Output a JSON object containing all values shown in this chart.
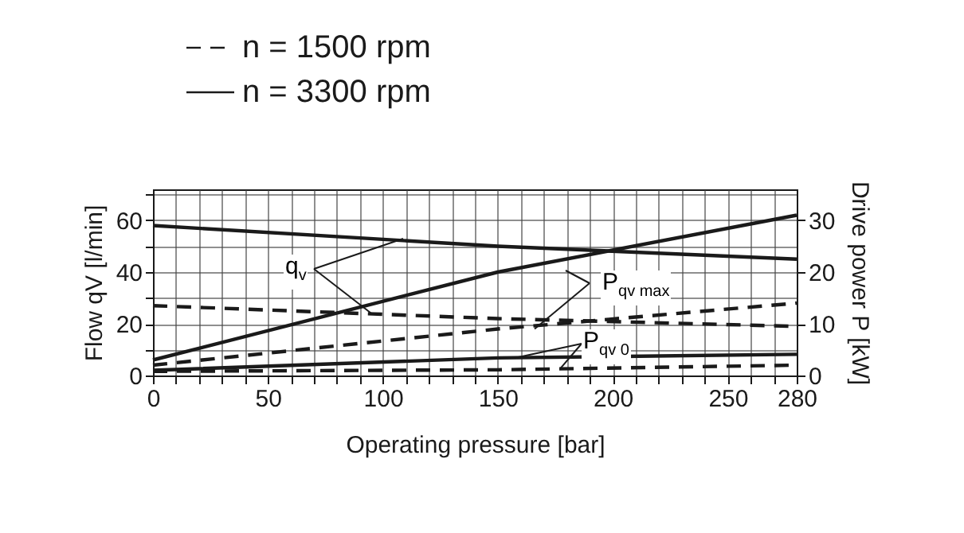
{
  "chart_data": {
    "type": "line",
    "xlabel": "Operating pressure  [bar]",
    "ylabel": "Flow qV [l/min]",
    "y2label": "Drive power P [kW]",
    "xlim": [
      0,
      280
    ],
    "xticks": [
      0,
      {
        "value": 10,
        "label": null
      },
      {
        "value": 20,
        "label": null
      },
      {
        "value": 30,
        "label": null
      },
      {
        "value": 40,
        "label": null
      },
      50,
      {
        "value": 60,
        "label": null
      },
      {
        "value": 70,
        "label": null
      },
      {
        "value": 80,
        "label": null
      },
      {
        "value": 90,
        "label": null
      },
      100,
      {
        "value": 110,
        "label": null
      },
      {
        "value": 120,
        "label": null
      },
      {
        "value": 130,
        "label": null
      },
      {
        "value": 140,
        "label": null
      },
      150,
      {
        "value": 160,
        "label": null
      },
      {
        "value": 170,
        "label": null
      },
      {
        "value": 180,
        "label": null
      },
      {
        "value": 190,
        "label": null
      },
      200,
      {
        "value": 210,
        "label": null
      },
      {
        "value": 220,
        "label": null
      },
      {
        "value": 230,
        "label": null
      },
      {
        "value": 240,
        "label": null
      },
      250,
      {
        "value": 260,
        "label": null
      },
      {
        "value": 270,
        "label": null
      },
      280
    ],
    "ylim": [
      0,
      72
    ],
    "yticks": [
      0,
      {
        "value": 10,
        "label": null
      },
      20,
      {
        "value": 30,
        "label": null
      },
      40,
      {
        "value": 50,
        "label": null
      },
      60,
      {
        "value": 70,
        "label": null
      }
    ],
    "y2lim": [
      0,
      36
    ],
    "y2ticks": [
      0,
      10,
      20,
      30
    ],
    "grid": true,
    "legend": "top left",
    "x": [
      0,
      150,
      280
    ],
    "series": [
      {
        "name": "n = 1500 rpm",
        "color": "#1a1a1a",
        "line_style": "dashed",
        "values": [
          27,
          22,
          19
        ]
      },
      {
        "name": "n = 3300 rpm",
        "color": "#1a1a1a",
        "line_style": "solid",
        "values": [
          58,
          50,
          45
        ]
      },
      {
        "color": "#1a1a1a",
        "line_style": "solid",
        "axis": "y2",
        "values": [
          3,
          20,
          31
        ]
      },
      {
        "color": "#1a1a1a",
        "line_style": "dashed",
        "axis": "y2",
        "values": [
          2,
          9,
          14
        ]
      },
      {
        "color": "#1a1a1a",
        "line_style": "solid",
        "axis": "y2",
        "values": [
          1,
          3.4,
          4.1
        ]
      },
      {
        "color": "#1a1a1a",
        "line_style": "dashed",
        "axis": "y2",
        "values": [
          0.8,
          1.1,
          2
        ]
      }
    ],
    "annotations": [
      {
        "text": "q$_{v}$",
        "x": 95,
        "y": 24
      },
      {
        "text": "P$_{qv max}$",
        "x": 166,
        "y": 18
      },
      {
        "text": "P$_{qv 0}$",
        "x": 177,
        "y": 2.5
      }
    ]
  }
}
